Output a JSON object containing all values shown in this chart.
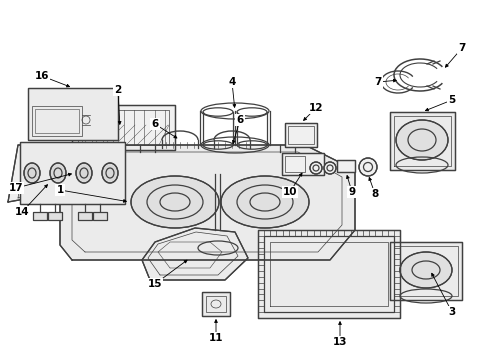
{
  "bg_color": "#ffffff",
  "line_color": "#404040",
  "text_color": "#000000",
  "lw": 0.9
}
